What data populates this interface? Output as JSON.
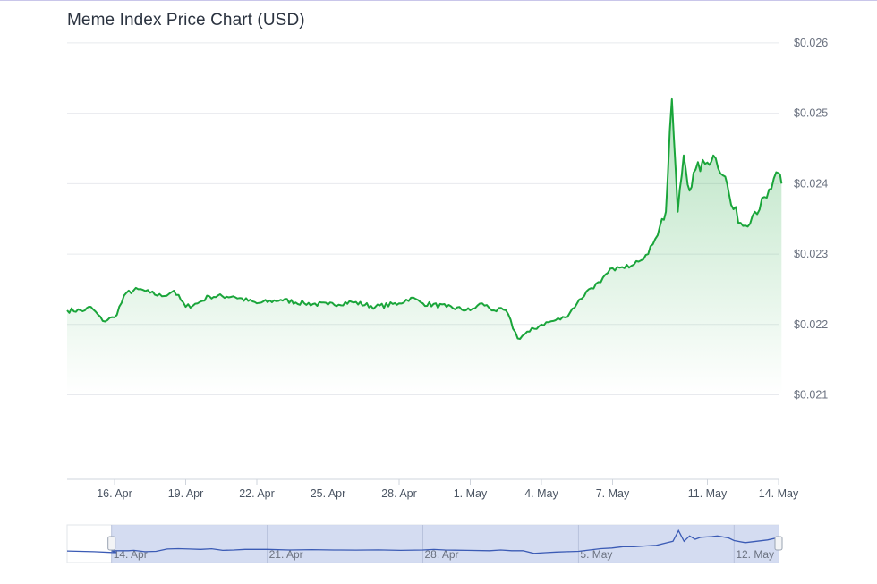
{
  "chart_data": {
    "type": "area",
    "title": "Meme Index Price Chart (USD)",
    "xlabel": "",
    "ylabel": "",
    "ylim": [
      0.0198,
      0.0261
    ],
    "y_ticks": [
      "$0.026",
      "$0.025",
      "$0.024",
      "$0.023",
      "$0.022",
      "$0.021"
    ],
    "y_tick_values": [
      0.026,
      0.025,
      0.024,
      0.023,
      0.022,
      0.021
    ],
    "x_range": [
      "2025-04-14",
      "2025-05-14"
    ],
    "x_ticks": [
      {
        "label": "16. Apr",
        "date": "2025-04-16"
      },
      {
        "label": "19. Apr",
        "date": "2025-04-19"
      },
      {
        "label": "22. Apr",
        "date": "2025-04-22"
      },
      {
        "label": "25. Apr",
        "date": "2025-04-25"
      },
      {
        "label": "28. Apr",
        "date": "2025-04-28"
      },
      {
        "label": "1. May",
        "date": "2025-05-01"
      },
      {
        "label": "4. May",
        "date": "2025-05-04"
      },
      {
        "label": "7. May",
        "date": "2025-05-07"
      },
      {
        "label": "11. May",
        "date": "2025-05-11"
      },
      {
        "label": "14. May",
        "date": "2025-05-14"
      }
    ],
    "grid": true,
    "legend": "none",
    "line_color": "#1aa53a",
    "fill_color": "#1aa53a",
    "series": [
      {
        "x": [
          "2025-04-14",
          "2025-04-14T18:00",
          "2025-04-15",
          "2025-04-15T12:00",
          "2025-04-16",
          "2025-04-16T12:00",
          "2025-04-17",
          "2025-04-17T12:00",
          "2025-04-18",
          "2025-04-18T12:00",
          "2025-04-19",
          "2025-04-19T12:00",
          "2025-04-20",
          "2025-04-21",
          "2025-04-22",
          "2025-04-23",
          "2025-04-24",
          "2025-04-25",
          "2025-04-26",
          "2025-04-27",
          "2025-04-28",
          "2025-04-28T12:00",
          "2025-04-29",
          "2025-04-30",
          "2025-05-01",
          "2025-05-01T12:00",
          "2025-05-02",
          "2025-05-02T12:00",
          "2025-05-03",
          "2025-05-03T12:00",
          "2025-05-04",
          "2025-05-04T12:00",
          "2025-05-05",
          "2025-05-05T12:00",
          "2025-05-06",
          "2025-05-06T12:00",
          "2025-05-07",
          "2025-05-07T12:00",
          "2025-05-08",
          "2025-05-08T12:00",
          "2025-05-09",
          "2025-05-09T06:00",
          "2025-05-09T12:00",
          "2025-05-09T18:00",
          "2025-05-10",
          "2025-05-10T06:00",
          "2025-05-10T12:00",
          "2025-05-11",
          "2025-05-11T06:00",
          "2025-05-11T18:00",
          "2025-05-12",
          "2025-05-12T12:00",
          "2025-05-13",
          "2025-05-13T12:00",
          "2025-05-14",
          "2025-05-14T03:00"
        ],
        "values": [
          0.0222,
          0.0222,
          0.02225,
          0.02205,
          0.0221,
          0.02245,
          0.0225,
          0.02245,
          0.0224,
          0.02248,
          0.02225,
          0.0223,
          0.0224,
          0.0224,
          0.0223,
          0.02235,
          0.0223,
          0.02228,
          0.02232,
          0.02225,
          0.0223,
          0.02238,
          0.0223,
          0.02225,
          0.0222,
          0.0223,
          0.0222,
          0.0222,
          0.0218,
          0.0219,
          0.022,
          0.02205,
          0.0221,
          0.0223,
          0.0225,
          0.0226,
          0.0228,
          0.0228,
          0.0229,
          0.023,
          0.0234,
          0.0236,
          0.0252,
          0.0236,
          0.0244,
          0.0239,
          0.0242,
          0.0243,
          0.0244,
          0.0241,
          0.0237,
          0.0234,
          0.0236,
          0.0238,
          0.02415,
          0.024
        ]
      }
    ],
    "navigator": {
      "x_ticks": [
        {
          "label": "14. Apr",
          "date": "2025-04-14"
        },
        {
          "label": "21. Apr",
          "date": "2025-04-21"
        },
        {
          "label": "28. Apr",
          "date": "2025-04-28"
        },
        {
          "label": "5. May",
          "date": "2025-05-05"
        },
        {
          "label": "12. May",
          "date": "2025-05-12"
        }
      ],
      "selection": [
        "2025-04-14",
        "2025-05-14"
      ],
      "line_color": "#3b5bb5",
      "mask_color": "#cdd6ef"
    }
  }
}
